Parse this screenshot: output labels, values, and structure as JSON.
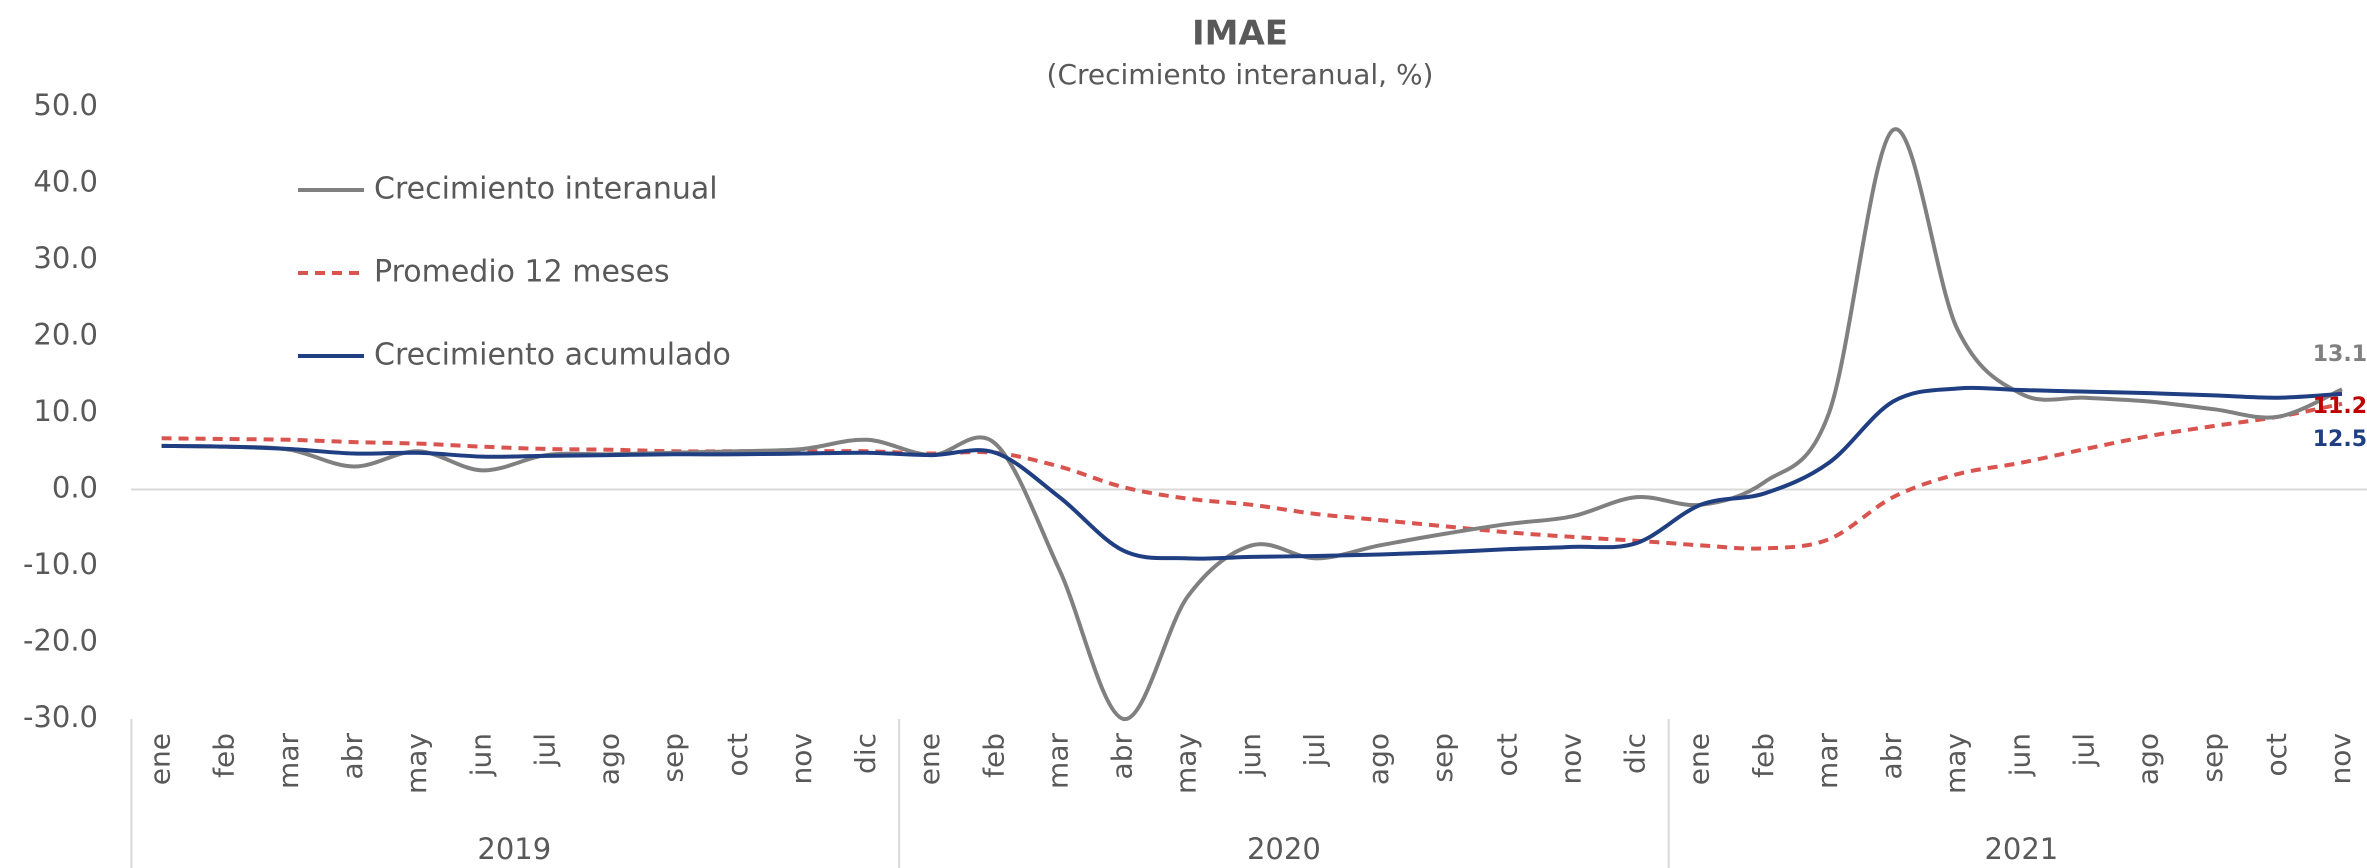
{
  "chart_data": {
    "type": "line",
    "title": "IMAE",
    "subtitle": "(Crecimiento interanual, %)",
    "category_groups": [
      {
        "label": "2019",
        "categories": [
          "ene",
          "feb",
          "mar",
          "abr",
          "may",
          "jun",
          "jul",
          "ago",
          "sep",
          "oct",
          "nov",
          "dic"
        ]
      },
      {
        "label": "2020",
        "categories": [
          "ene",
          "feb",
          "mar",
          "abr",
          "may",
          "jun",
          "jul",
          "ago",
          "sep",
          "oct",
          "nov",
          "dic"
        ]
      },
      {
        "label": "2021",
        "categories": [
          "ene",
          "feb",
          "mar",
          "abr",
          "may",
          "jun",
          "jul",
          "ago",
          "sep",
          "oct",
          "nov"
        ]
      }
    ],
    "series": [
      {
        "name": "Crecimiento interanual",
        "color": "#808080",
        "dash": "solid",
        "values": [
          5.7,
          5.6,
          5.2,
          3.0,
          5.0,
          2.5,
          4.5,
          4.6,
          4.8,
          5.0,
          5.3,
          6.5,
          4.5,
          6.0,
          -10.5,
          -30.0,
          -14.0,
          -7.3,
          -9.0,
          -7.3,
          -5.8,
          -4.5,
          -3.5,
          -1.0,
          -2.0,
          1.0,
          10.0,
          47.0,
          21.0,
          12.5,
          12.0,
          11.5,
          10.5,
          9.5,
          13.1
        ]
      },
      {
        "name": "Promedio 12 meses",
        "color": "#d9534f",
        "dash": "dashed",
        "label_color": "#c00000",
        "values": [
          6.7,
          6.6,
          6.5,
          6.2,
          6.0,
          5.6,
          5.3,
          5.2,
          5.0,
          5.0,
          5.0,
          5.0,
          4.7,
          4.8,
          3.0,
          0.3,
          -1.2,
          -2.0,
          -3.2,
          -4.0,
          -4.8,
          -5.6,
          -6.2,
          -6.7,
          -7.3,
          -7.7,
          -6.5,
          -1.0,
          2.0,
          3.5,
          5.3,
          7.0,
          8.3,
          9.5,
          11.2
        ]
      },
      {
        "name": "Crecimiento acumulado",
        "color": "#1f3f82",
        "dash": "solid",
        "values": [
          5.7,
          5.6,
          5.3,
          4.7,
          4.8,
          4.3,
          4.4,
          4.5,
          4.6,
          4.6,
          4.7,
          4.8,
          4.5,
          4.8,
          -1.0,
          -8.0,
          -9.0,
          -8.8,
          -8.7,
          -8.5,
          -8.2,
          -7.8,
          -7.5,
          -7.0,
          -2.0,
          -0.5,
          3.5,
          11.5,
          13.2,
          13.0,
          12.8,
          12.6,
          12.3,
          12.0,
          12.5
        ]
      }
    ],
    "ylim": [
      -30,
      50
    ],
    "yticks": [
      {
        "value": -30,
        "label": "-30.0"
      },
      {
        "value": -20,
        "label": "-20.0"
      },
      {
        "value": -10,
        "label": "-10.0"
      },
      {
        "value": 0,
        "label": "0.0"
      },
      {
        "value": 10,
        "label": "10.0"
      },
      {
        "value": 20,
        "label": "20.0"
      },
      {
        "value": 30,
        "label": "30.0"
      },
      {
        "value": 40,
        "label": "40.0"
      },
      {
        "value": 50,
        "label": "50.0"
      }
    ],
    "legend": "upper left"
  }
}
